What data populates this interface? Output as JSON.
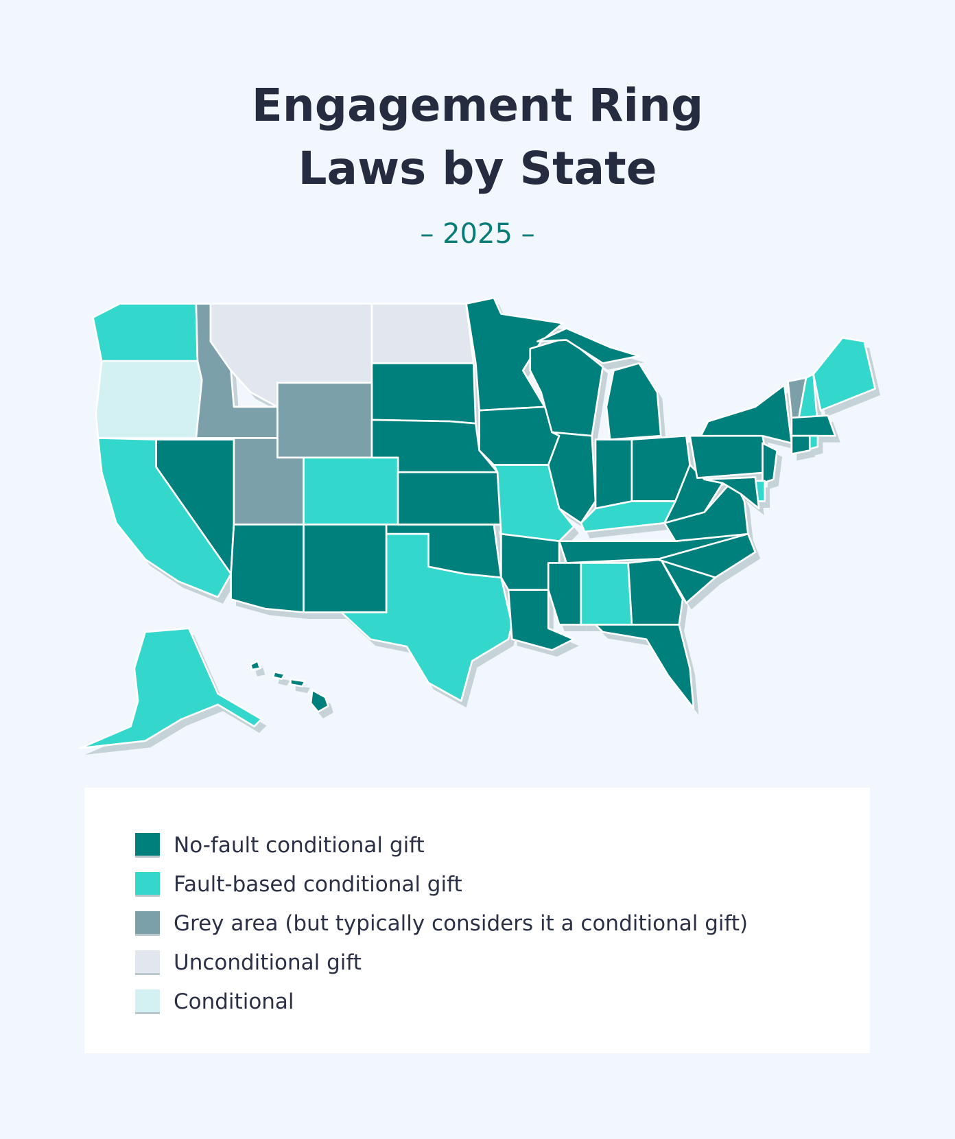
{
  "title": "Engagement Ring Laws by State",
  "subtitle": "– 2025 –",
  "legend": {
    "items": [
      {
        "label": "No-fault conditional gift",
        "color": "#00807c"
      },
      {
        "label": "Fault-based conditional gift",
        "color": "#33d7cc"
      },
      {
        "label": "Grey area (but typically considers it a conditional gift)",
        "color": "#7ca0a9"
      },
      {
        "label": "Unconditional gift",
        "color": "#e2e7ef"
      },
      {
        "label": "Conditional",
        "color": "#d3f1f2"
      }
    ]
  }
}
